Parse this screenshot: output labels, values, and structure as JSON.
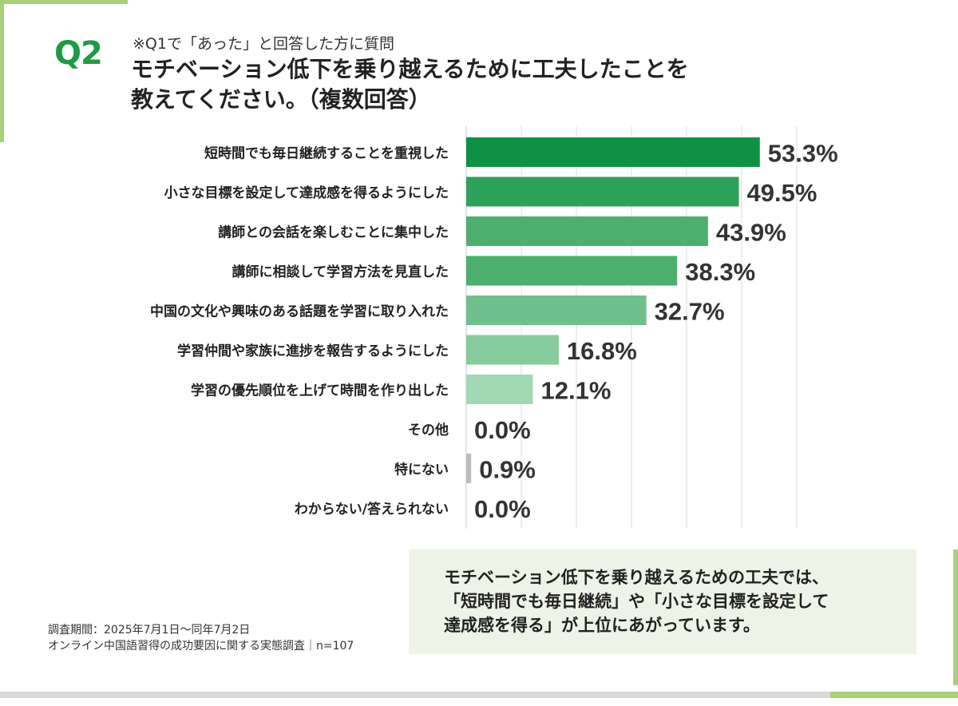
{
  "header": {
    "q_label": "Q2",
    "note": "※Q1で「あった」と回答した方に質問",
    "title": "モチベーション低下を乗り越えるために工夫したことを\n教えてください。（複数回答）"
  },
  "chart_data": {
    "type": "bar",
    "orientation": "horizontal",
    "categories": [
      "短時間でも毎日継続することを重視した",
      "小さな目標を設定して達成感を得るようにした",
      "講師との会話を楽しむことに集中した",
      "講師に相談して学習方法を見直した",
      "中国の文化や興味のある話題を学習に取り入れた",
      "学習仲間や家族に進捗を報告するようにした",
      "学習の優先順位を上げて時間を作り出した",
      "その他",
      "特にない",
      "わからない/答えられない"
    ],
    "values": [
      53.3,
      49.5,
      43.9,
      38.3,
      32.7,
      16.8,
      12.1,
      0.0,
      0.9,
      0.0
    ],
    "value_labels": [
      "53.3%",
      "49.5%",
      "43.9%",
      "38.3%",
      "32.7%",
      "16.8%",
      "12.1%",
      "0.0%",
      "0.9%",
      "0.0%"
    ],
    "colors": [
      "#0e9144",
      "#2ea25a",
      "#4caf6e",
      "#4caf6e",
      "#6fbf8a",
      "#86cc9c",
      "#a3d8b4",
      "#0e9144",
      "#bdbdbd",
      "#0e9144"
    ],
    "xlim": [
      0,
      60
    ],
    "grid": true
  },
  "summary": {
    "text": "モチベーション低下を乗り越えるための工夫では、\n「短時間でも毎日継続」や「小さな目標を設定して\n達成感を得る」が上位にあがっています。"
  },
  "source": {
    "line1": "調査期間：2025年7月1日～同年7月2日",
    "line2": "オンライン中国語習得の成功要因に関する実態調査｜n=107"
  }
}
